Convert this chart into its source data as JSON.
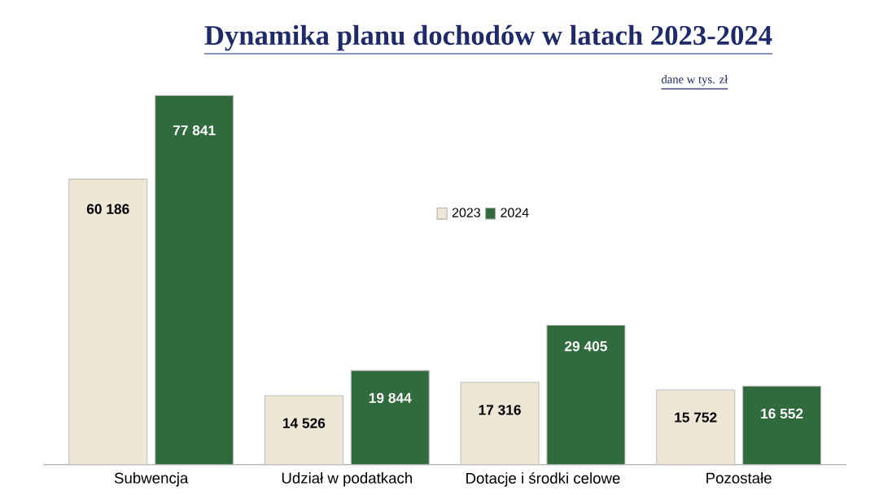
{
  "chart_data": {
    "type": "bar",
    "title": "Dynamika planu dochodów w latach 2023-2024",
    "subtitle": "dane w tys. zł",
    "categories": [
      "Subwencja",
      "Udział w podatkach",
      "Dotacje i środki celowe",
      "Pozostałe"
    ],
    "series": [
      {
        "name": "2023",
        "color": "#efe7d6",
        "values": [
          60186,
          14526,
          17316,
          15752
        ],
        "value_labels": [
          "60 186",
          "14 526",
          "17 316",
          "15 752"
        ]
      },
      {
        "name": "2024",
        "color": "#2f6b3c",
        "values": [
          77841,
          19844,
          29405,
          16552
        ],
        "value_labels": [
          "77 841",
          "19 844",
          "29 405",
          "16 552"
        ]
      }
    ],
    "legend": "top"
  }
}
